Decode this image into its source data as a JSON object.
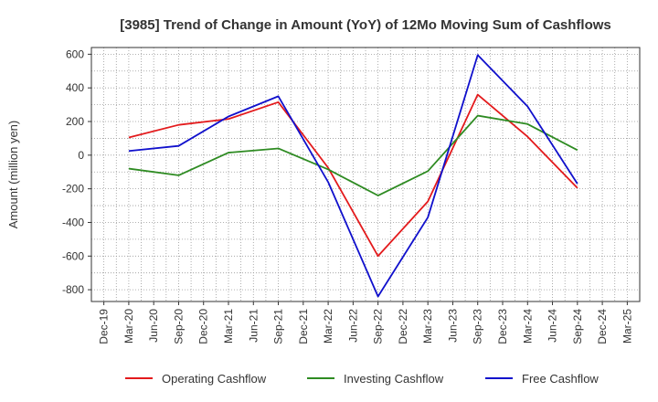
{
  "chart_data": {
    "type": "line",
    "title": "[3985]  Trend of Change in Amount (YoY) of 12Mo Moving Sum of Cashflows",
    "xlabel": "",
    "ylabel": "Amount (million yen)",
    "ylim": [
      -870,
      640
    ],
    "yticks": [
      600,
      400,
      200,
      0,
      -200,
      -400,
      -600,
      -800
    ],
    "categories": [
      "Dec-19",
      "Mar-20",
      "Jun-20",
      "Sep-20",
      "Dec-20",
      "Mar-21",
      "Jun-21",
      "Sep-21",
      "Dec-21",
      "Mar-22",
      "Jun-22",
      "Sep-22",
      "Dec-22",
      "Mar-23",
      "Jun-23",
      "Sep-23",
      "Dec-23",
      "Mar-24",
      "Jun-24",
      "Sep-24",
      "Dec-24",
      "Mar-25"
    ],
    "series": [
      {
        "name": "Operating Cashflow",
        "color": "#e31a1c",
        "values": [
          null,
          105,
          null,
          180,
          null,
          215,
          null,
          315,
          null,
          -75,
          null,
          -600,
          null,
          -275,
          null,
          360,
          null,
          110,
          null,
          -195,
          null,
          null
        ]
      },
      {
        "name": "Investing Cashflow",
        "color": "#2e8b22",
        "values": [
          null,
          -80,
          null,
          -120,
          null,
          15,
          null,
          40,
          null,
          -85,
          null,
          -240,
          null,
          -95,
          null,
          235,
          null,
          185,
          null,
          30,
          null,
          null
        ]
      },
      {
        "name": "Free Cashflow",
        "color": "#1010cc",
        "values": [
          null,
          25,
          null,
          55,
          null,
          230,
          null,
          350,
          null,
          -160,
          null,
          -840,
          null,
          -370,
          null,
          595,
          null,
          290,
          null,
          -170,
          null,
          null
        ]
      }
    ],
    "grid": true,
    "legend": "bottom"
  }
}
